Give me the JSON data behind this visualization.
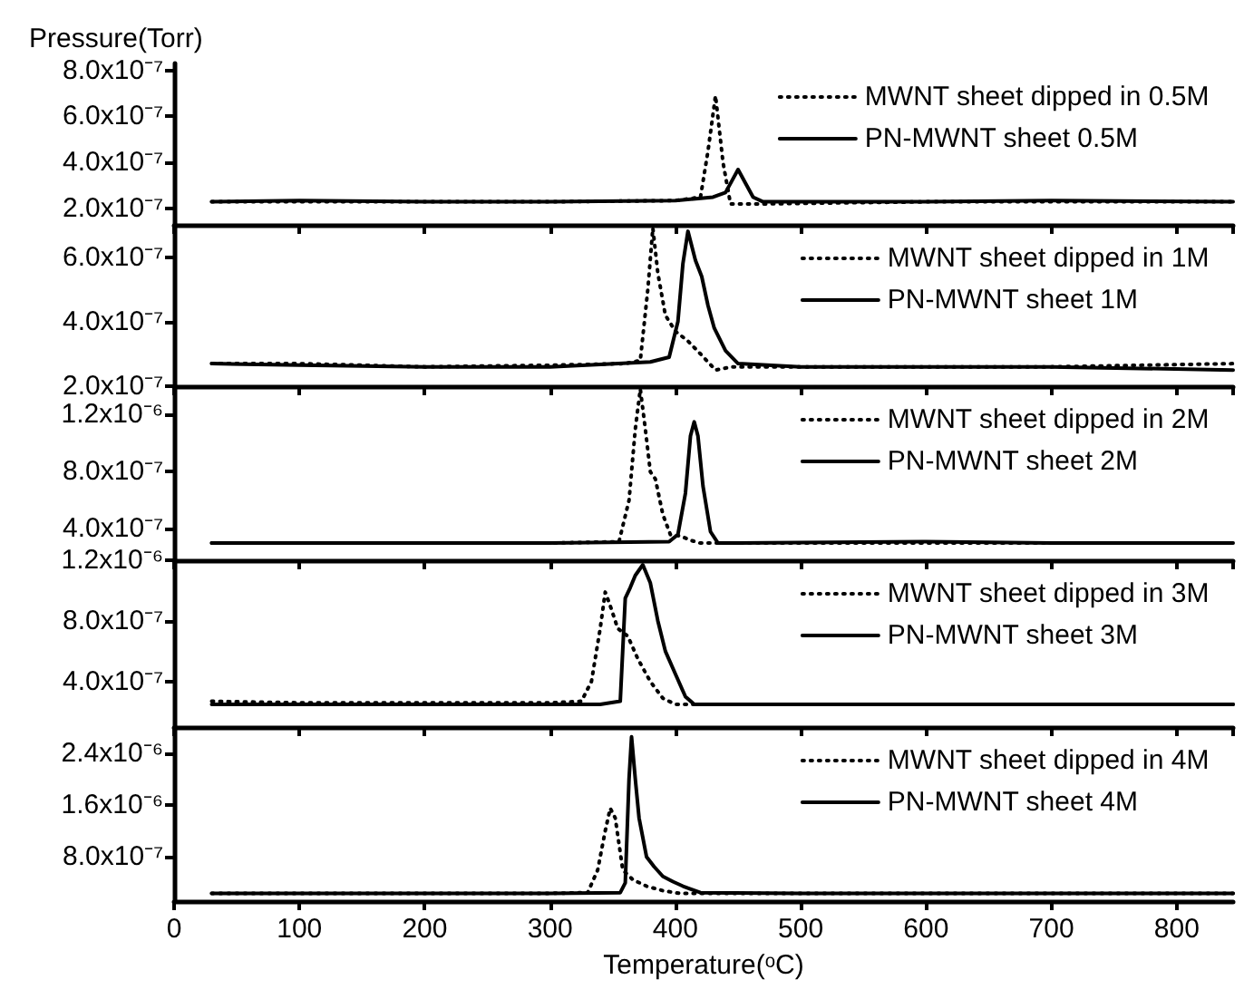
{
  "chart_data": [
    {
      "type": "line",
      "ylabel": "Pressure(Torr)",
      "xlim": [
        0,
        845
      ],
      "xticks": [
        0,
        100,
        200,
        300,
        400,
        500,
        600,
        700,
        800
      ],
      "ylim": [
        1.3e-07,
        8.3e-07
      ],
      "yticks": [
        {
          "value": 2e-07,
          "label": "2.0x10⁻⁷"
        },
        {
          "value": 4e-07,
          "label": "4.0x10⁻⁷"
        },
        {
          "value": 6e-07,
          "label": "6.0x10⁻⁷"
        },
        {
          "value": 8e-07,
          "label": "8.0x10⁻⁷"
        }
      ],
      "tick_labels": "y",
      "legend": "top right",
      "series": [
        {
          "name": "MWNT sheet dipped in 0.5M",
          "color": "#000000",
          "line_style": "dotted",
          "x": [
            30,
            100,
            200,
            300,
            400,
            420,
            426,
            432,
            438,
            444,
            460,
            600,
            700,
            845
          ],
          "values": [
            2.3e-07,
            2.3e-07,
            2.3e-07,
            2.3e-07,
            2.35e-07,
            2.5e-07,
            4.5e-07,
            6.9e-07,
            4e-07,
            2.2e-07,
            2.2e-07,
            2.3e-07,
            2.3e-07,
            2.3e-07
          ]
        },
        {
          "name": "PN-MWNT sheet 0.5M",
          "color": "#000000",
          "line_style": "solid",
          "x": [
            30,
            100,
            200,
            300,
            400,
            430,
            440,
            446,
            450,
            455,
            462,
            470,
            600,
            700,
            845
          ],
          "values": [
            2.3e-07,
            2.35e-07,
            2.3e-07,
            2.3e-07,
            2.35e-07,
            2.5e-07,
            2.7e-07,
            3.3e-07,
            3.7e-07,
            3.2e-07,
            2.5e-07,
            2.3e-07,
            2.3e-07,
            2.35e-07,
            2.3e-07
          ]
        }
      ]
    },
    {
      "type": "line",
      "xlim": [
        0,
        845
      ],
      "xticks": [
        0,
        100,
        200,
        300,
        400,
        500,
        600,
        700,
        800
      ],
      "ylim": [
        2e-07,
        7e-07
      ],
      "yticks": [
        {
          "value": 2e-07,
          "label": "2.0x10⁻⁷"
        },
        {
          "value": 4e-07,
          "label": "4.0x10⁻⁷"
        },
        {
          "value": 6e-07,
          "label": "6.0x10⁻⁷"
        }
      ],
      "tick_labels": "y",
      "legend": "top right",
      "series": [
        {
          "name": "MWNT sheet dipped in 1M",
          "color": "#000000",
          "line_style": "dotted",
          "x": [
            30,
            100,
            200,
            300,
            360,
            372,
            378,
            382,
            386,
            392,
            400,
            410,
            420,
            432,
            445,
            500,
            600,
            700,
            845
          ],
          "values": [
            2.7e-07,
            2.7e-07,
            2.6e-07,
            2.65e-07,
            2.7e-07,
            2.8e-07,
            5e-07,
            6.9e-07,
            5.5e-07,
            4.2e-07,
            3.7e-07,
            3.4e-07,
            3e-07,
            2.5e-07,
            2.6e-07,
            2.6e-07,
            2.6e-07,
            2.6e-07,
            2.7e-07
          ]
        },
        {
          "name": "PN-MWNT sheet 1M",
          "color": "#000000",
          "line_style": "solid",
          "x": [
            30,
            100,
            200,
            300,
            380,
            395,
            402,
            406,
            410,
            416,
            421,
            426,
            431,
            440,
            450,
            500,
            600,
            700,
            845
          ],
          "values": [
            2.7e-07,
            2.65e-07,
            2.6e-07,
            2.6e-07,
            2.75e-07,
            2.9e-07,
            4e-07,
            5.8e-07,
            6.8e-07,
            5.9e-07,
            5.4e-07,
            4.5e-07,
            3.8e-07,
            3.1e-07,
            2.7e-07,
            2.6e-07,
            2.6e-07,
            2.6e-07,
            2.5e-07
          ]
        }
      ]
    },
    {
      "type": "line",
      "xlim": [
        0,
        845
      ],
      "xticks": [
        0,
        100,
        200,
        300,
        400,
        500,
        600,
        700,
        800
      ],
      "ylim": [
        1.8e-07,
        1.4e-06
      ],
      "yticks": [
        {
          "value": 4e-07,
          "label": "4.0x10⁻⁷"
        },
        {
          "value": 8e-07,
          "label": "8.0x10⁻⁷"
        },
        {
          "value": 1.2e-06,
          "label": "1.2x10⁻⁶"
        }
      ],
      "tick_labels": "y",
      "legend": "top right",
      "series": [
        {
          "name": "MWNT sheet dipped in 2M",
          "color": "#000000",
          "line_style": "dotted",
          "x": [
            30,
            100,
            200,
            300,
            355,
            363,
            368,
            372,
            376,
            380,
            384,
            390,
            396,
            404,
            412,
            420,
            500,
            600,
            700,
            845
          ],
          "values": [
            3e-07,
            3e-07,
            3e-07,
            3e-07,
            3.1e-07,
            6e-07,
            1.1e-06,
            1.38e-06,
            1.1e-06,
            8e-07,
            7.5e-07,
            5e-07,
            3.6e-07,
            3.5e-07,
            3.2e-07,
            3e-07,
            3e-07,
            3e-07,
            3e-07,
            3e-07
          ]
        },
        {
          "name": "PN-MWNT sheet 2M",
          "color": "#000000",
          "line_style": "solid",
          "x": [
            30,
            100,
            200,
            300,
            395,
            402,
            408,
            412,
            415,
            418,
            422,
            428,
            434,
            450,
            600,
            700,
            845
          ],
          "values": [
            3e-07,
            3e-07,
            3e-07,
            3e-07,
            3.1e-07,
            3.6e-07,
            6.5e-07,
            1.05e-06,
            1.15e-06,
            1.05e-06,
            7e-07,
            3.8e-07,
            3e-07,
            3e-07,
            3.1e-07,
            3e-07,
            3e-07
          ]
        }
      ]
    },
    {
      "type": "line",
      "xlim": [
        0,
        845
      ],
      "xticks": [
        0,
        100,
        200,
        300,
        400,
        500,
        600,
        700,
        800
      ],
      "ylim": [
        1e-07,
        1.2e-06
      ],
      "yticks": [
        {
          "value": 4e-07,
          "label": "4.0x10⁻⁷"
        },
        {
          "value": 8e-07,
          "label": "8.0x10⁻⁷"
        },
        {
          "value": 1.2e-06,
          "label": "1.2x10⁻⁶"
        }
      ],
      "tick_labels": "y",
      "legend": "top right",
      "series": [
        {
          "name": "MWNT sheet dipped in 3M",
          "color": "#000000",
          "line_style": "dotted",
          "x": [
            30,
            100,
            200,
            300,
            325,
            333,
            340,
            344,
            348,
            354,
            362,
            370,
            380,
            390,
            400,
            500,
            600,
            700,
            845
          ],
          "values": [
            2.7e-07,
            2.6e-07,
            2.6e-07,
            2.6e-07,
            2.7e-07,
            4e-07,
            7.5e-07,
            9.9e-07,
            9e-07,
            7.5e-07,
            7e-07,
            5.5e-07,
            4e-07,
            2.9e-07,
            2.5e-07,
            2.5e-07,
            2.5e-07,
            2.5e-07,
            2.5e-07
          ]
        },
        {
          "name": "PN-MWNT sheet 3M",
          "color": "#000000",
          "line_style": "solid",
          "x": [
            30,
            100,
            200,
            300,
            340,
            356,
            360,
            364,
            368,
            374,
            380,
            386,
            392,
            400,
            408,
            415,
            500,
            600,
            700,
            845
          ],
          "values": [
            2.5e-07,
            2.5e-07,
            2.5e-07,
            2.5e-07,
            2.5e-07,
            2.7e-07,
            9.5e-07,
            1.02e-06,
            1.1e-06,
            1.17e-06,
            1.05e-06,
            8e-07,
            6e-07,
            4.5e-07,
            3e-07,
            2.5e-07,
            2.5e-07,
            2.5e-07,
            2.5e-07,
            2.5e-07
          ]
        }
      ]
    },
    {
      "type": "line",
      "xlabel": "Temperature(ᵒC)",
      "xlim": [
        0,
        845
      ],
      "xticks": [
        0,
        100,
        200,
        300,
        400,
        500,
        600,
        700,
        800
      ],
      "ylim": [
        1.2e-07,
        2.8e-06
      ],
      "yticks": [
        {
          "value": 8e-07,
          "label": "8.0x10⁻⁷"
        },
        {
          "value": 1.6e-06,
          "label": "1.6x10⁻⁶"
        },
        {
          "value": 2.4e-06,
          "label": "2.4x10⁻⁶"
        }
      ],
      "legend": "top right",
      "series": [
        {
          "name": "MWNT sheet dipped in 4M",
          "color": "#000000",
          "line_style": "dotted",
          "x": [
            30,
            100,
            200,
            300,
            330,
            338,
            344,
            348,
            352,
            358,
            366,
            377,
            390,
            403,
            500,
            600,
            700,
            845
          ],
          "values": [
            2.4e-07,
            2.4e-07,
            2.4e-07,
            2.4e-07,
            2.5e-07,
            6e-07,
            1.2e-06,
            1.55e-06,
            1.4e-06,
            6e-07,
            4.5e-07,
            3.5e-07,
            2.8e-07,
            2.4e-07,
            2.4e-07,
            2.4e-07,
            2.4e-07,
            2.4e-07
          ]
        },
        {
          "name": "PN-MWNT sheet 4M",
          "color": "#000000",
          "line_style": "solid",
          "x": [
            30,
            100,
            200,
            300,
            356,
            360,
            363,
            365,
            368,
            371,
            377,
            383,
            390,
            398,
            406,
            420,
            500,
            600,
            700,
            845
          ],
          "values": [
            2.4e-07,
            2.4e-07,
            2.4e-07,
            2.4e-07,
            2.5e-07,
            4e-07,
            2e-06,
            2.65e-06,
            2e-06,
            1.4e-06,
            8e-07,
            6.5e-07,
            5e-07,
            4.2e-07,
            3.5e-07,
            2.5e-07,
            2.4e-07,
            2.4e-07,
            2.4e-07,
            2.4e-07
          ]
        }
      ]
    }
  ]
}
